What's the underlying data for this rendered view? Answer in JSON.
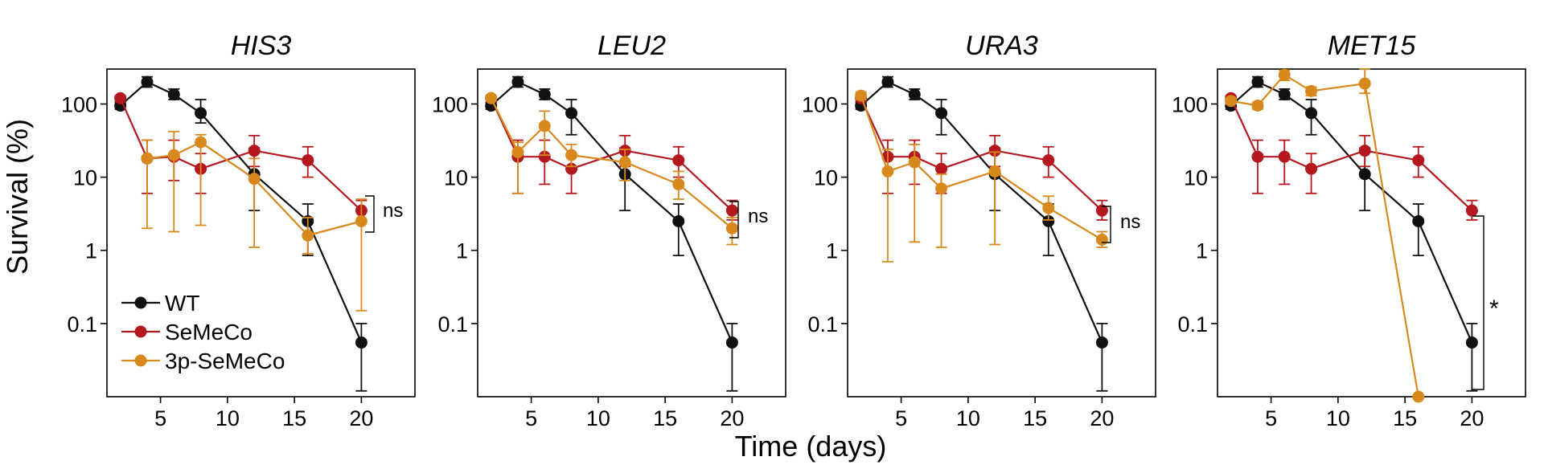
{
  "colors": {
    "WT": "#111111",
    "SeMeCo": "#b5171e",
    "3p-SeMeCo": "#d8891e"
  },
  "chart_data": {
    "type": "line",
    "xlabel": "Time (days)",
    "ylabel": "Survival (%)",
    "yscale": "log",
    "x_ticks": [
      5,
      10,
      15,
      20
    ],
    "y_ticks": [
      0.1,
      1,
      10,
      100
    ],
    "y_tick_labels": [
      "0.1",
      "1",
      "10",
      "100"
    ],
    "legend": {
      "placement": "lower-left of first panel",
      "entries": [
        "WT",
        "SeMeCo",
        "3p-SeMeCo"
      ]
    },
    "panels": [
      {
        "title": "HIS3",
        "xlim": [
          1,
          24
        ],
        "ylim": [
          0.01,
          300
        ],
        "significance": "ns",
        "series": [
          {
            "name": "WT",
            "x": [
              2,
              4,
              6,
              8,
              12,
              16,
              20
            ],
            "y": [
              95,
              200,
              135,
              75,
              11,
              2.5,
              0.055
            ],
            "err_low": [
              85,
              170,
              115,
              55,
              3.5,
              0.85,
              0.012
            ],
            "err_high": [
              105,
              235,
              160,
              115,
              25,
              4.3,
              0.1
            ]
          },
          {
            "name": "SeMeCo",
            "x": [
              2,
              4,
              6,
              8,
              12,
              16,
              20
            ],
            "y": [
              120,
              18,
              19,
              13,
              23,
              17,
              3.5
            ],
            "err_low": [
              110,
              6,
              9,
              6,
              14,
              10,
              2.6
            ],
            "err_high": [
              130,
              32,
              32,
              21,
              37,
              26,
              4.8
            ]
          },
          {
            "name": "3p-SeMeCo",
            "x": [
              4,
              6,
              8,
              12,
              16,
              20
            ],
            "y": [
              18,
              20,
              30,
              9.5,
              1.6,
              2.5
            ],
            "err_low": [
              2,
              1.8,
              2.2,
              1.1,
              0.9,
              0.15
            ],
            "err_high": [
              32,
              42,
              38,
              18,
              2.8,
              5
            ]
          }
        ]
      },
      {
        "title": "LEU2",
        "xlim": [
          1,
          24
        ],
        "ylim": [
          0.01,
          300
        ],
        "significance": "ns",
        "series": [
          {
            "name": "WT",
            "x": [
              2,
              4,
              6,
              8,
              12,
              16,
              20
            ],
            "y": [
              95,
              200,
              135,
              75,
              11,
              2.5,
              0.055
            ],
            "err_low": [
              85,
              170,
              115,
              38,
              3.5,
              0.85,
              0.012
            ],
            "err_high": [
              105,
              235,
              160,
              115,
              25,
              4.3,
              0.1
            ]
          },
          {
            "name": "SeMeCo",
            "x": [
              2,
              4,
              6,
              8,
              12,
              16,
              20
            ],
            "y": [
              120,
              19,
              19,
              13,
              23,
              17,
              3.5
            ],
            "err_low": [
              110,
              6,
              8,
              6,
              14,
              10,
              2.6
            ],
            "err_high": [
              130,
              32,
              32,
              21,
              37,
              26,
              4.8
            ]
          },
          {
            "name": "3p-SeMeCo",
            "x": [
              2,
              4,
              6,
              8,
              12,
              16,
              20
            ],
            "y": [
              120,
              22,
              50,
              20,
              16,
              8,
              2
            ],
            "err_low": [
              110,
              6,
              20,
              14,
              9,
              5,
              1.2
            ],
            "err_high": [
              130,
              30,
              80,
              28,
              24,
              12,
              2.8
            ]
          }
        ]
      },
      {
        "title": "URA3",
        "xlim": [
          1,
          24
        ],
        "ylim": [
          0.01,
          300
        ],
        "significance": "ns",
        "series": [
          {
            "name": "WT",
            "x": [
              2,
              4,
              6,
              8,
              12,
              16,
              20
            ],
            "y": [
              95,
              200,
              135,
              75,
              11,
              2.5,
              0.055
            ],
            "err_low": [
              85,
              170,
              115,
              38,
              3.5,
              0.85,
              0.012
            ],
            "err_high": [
              105,
              235,
              160,
              115,
              25,
              4.3,
              0.1
            ]
          },
          {
            "name": "SeMeCo",
            "x": [
              2,
              4,
              6,
              8,
              12,
              16,
              20
            ],
            "y": [
              120,
              19,
              19,
              13,
              23,
              17,
              3.5
            ],
            "err_low": [
              110,
              6,
              8,
              6,
              14,
              10,
              2.6
            ],
            "err_high": [
              130,
              32,
              32,
              21,
              37,
              26,
              4.8
            ]
          },
          {
            "name": "3p-SeMeCo",
            "x": [
              2,
              4,
              6,
              8,
              12,
              16,
              20
            ],
            "y": [
              130,
              12,
              16,
              7,
              12,
              3.8,
              1.4
            ],
            "err_low": [
              115,
              0.7,
              1.3,
              1.1,
              1.2,
              2.6,
              1.1
            ],
            "err_high": [
              145,
              24,
              28,
              11,
              22,
              5.5,
              1.8
            ]
          }
        ]
      },
      {
        "title": "MET15",
        "xlim": [
          1,
          24
        ],
        "ylim": [
          0.01,
          300
        ],
        "significance": "*",
        "series": [
          {
            "name": "WT",
            "x": [
              2,
              4,
              6,
              8,
              12,
              16,
              20
            ],
            "y": [
              95,
              200,
              135,
              75,
              11,
              2.5,
              0.055
            ],
            "err_low": [
              85,
              170,
              115,
              38,
              3.5,
              0.85,
              0.012
            ],
            "err_high": [
              105,
              235,
              160,
              115,
              25,
              4.3,
              0.1
            ]
          },
          {
            "name": "SeMeCo",
            "x": [
              2,
              4,
              6,
              8,
              12,
              16,
              20
            ],
            "y": [
              120,
              19,
              19,
              13,
              23,
              17,
              3.5
            ],
            "err_low": [
              110,
              6,
              8,
              6,
              14,
              10,
              2.6
            ],
            "err_high": [
              130,
              32,
              32,
              21,
              37,
              26,
              4.8
            ]
          },
          {
            "name": "3p-SeMeCo",
            "x": [
              2,
              4,
              6,
              8,
              12,
              16
            ],
            "y": [
              110,
              95,
              250,
              150,
              190,
              0.01
            ],
            "err_low": [
              100,
              85,
              210,
              130,
              140,
              0.01
            ],
            "err_high": [
              120,
              105,
              290,
              170,
              300,
              0.01
            ]
          }
        ]
      }
    ]
  }
}
